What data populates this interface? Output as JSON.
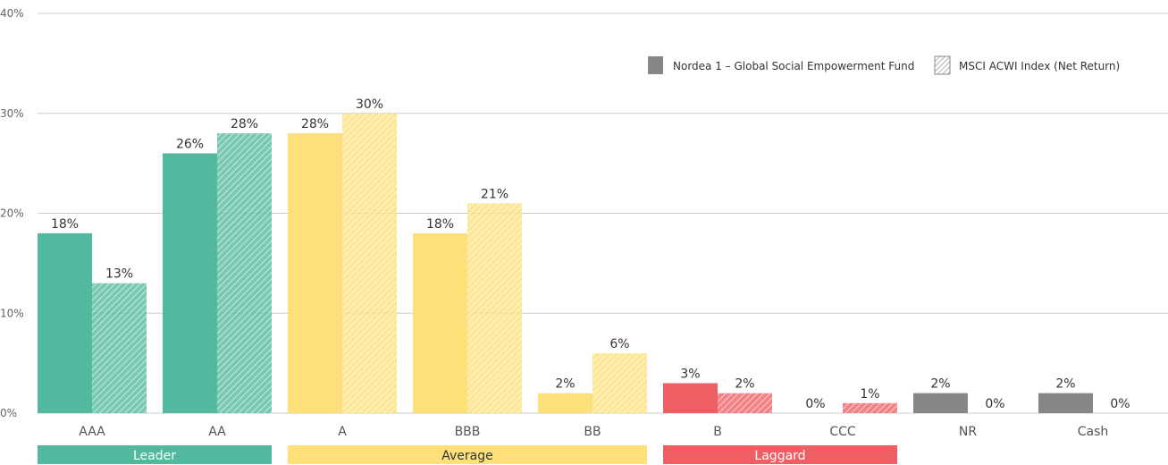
{
  "chart_data": {
    "type": "bar",
    "categories": [
      "AAA",
      "AA",
      "A",
      "BBB",
      "BB",
      "B",
      "CCC",
      "NR",
      "Cash"
    ],
    "series": [
      {
        "name": "Nordea 1 – Global Social Empowerment Fund",
        "values": [
          18,
          26,
          28,
          18,
          2,
          3,
          0,
          2,
          2
        ],
        "labels": [
          "18%",
          "26%",
          "28%",
          "18%",
          "2%",
          "3%",
          "0%",
          "2%",
          "2%"
        ],
        "pattern": "solid"
      },
      {
        "name": "MSCI ACWI Index (Net Return)",
        "values": [
          13,
          28,
          30,
          21,
          6,
          2,
          1,
          0,
          0
        ],
        "labels": [
          "13%",
          "28%",
          "30%",
          "21%",
          "6%",
          "2%",
          "1%",
          "0%",
          "0%"
        ],
        "pattern": "hatched"
      }
    ],
    "category_colors": [
      "#52b99e",
      "#52b99e",
      "#fde07a",
      "#fde07a",
      "#fde07a",
      "#ee5f64",
      "#ee5f64",
      "#878787",
      "#878787"
    ],
    "ylim": [
      0,
      40
    ],
    "yticks": [
      {
        "value": 0,
        "label": "0%"
      },
      {
        "value": 10,
        "label": "10%"
      },
      {
        "value": 20,
        "label": "20%"
      },
      {
        "value": 30,
        "label": "30%"
      },
      {
        "value": 40,
        "label": "40%"
      }
    ],
    "grid": true,
    "legend_position": "top-right",
    "groups": [
      {
        "label": "Leader",
        "from": "AAA",
        "to": "AA",
        "color": "#52b99e",
        "text_color": "#ffffff"
      },
      {
        "label": "Average",
        "from": "A",
        "to": "BB",
        "color": "#fde07a",
        "text_color": "#333333"
      },
      {
        "label": "Laggard",
        "from": "B",
        "to": "CCC",
        "color": "#ee5f64",
        "text_color": "#ffffff"
      }
    ],
    "title": "",
    "xlabel": "",
    "ylabel": ""
  }
}
